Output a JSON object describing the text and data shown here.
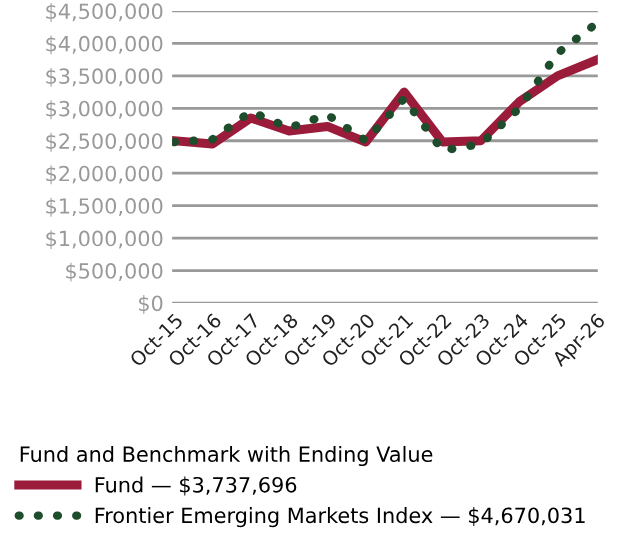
{
  "chart_data": {
    "type": "line",
    "categories": [
      "Oct-15",
      "Oct-16",
      "Oct-17",
      "Oct-18",
      "Oct-19",
      "Oct-20",
      "Oct-21",
      "Oct-22",
      "Oct-23",
      "Oct-24",
      "Oct-25",
      "Apr-26"
    ],
    "series": [
      {
        "name": "Fund — $3,737,696",
        "color": "#9b1b3a",
        "line_style": "solid",
        "values": [
          2500000,
          2450000,
          2850000,
          2650000,
          2720000,
          2480000,
          3250000,
          2480000,
          2500000,
          3100000,
          3500000,
          3740000
        ]
      },
      {
        "name": "Frontier Emerging Markets Index — $4,670,031",
        "color": "#1e4d2b",
        "line_style": "dotted",
        "values": [
          2480000,
          2520000,
          2950000,
          2700000,
          2900000,
          2500000,
          3150000,
          2350000,
          2450000,
          3000000,
          3850000,
          4300000
        ]
      }
    ],
    "ylim": [
      0,
      4500000
    ],
    "yticks": [
      {
        "value": 0,
        "label": "$0"
      },
      {
        "value": 500000,
        "label": "$500,000"
      },
      {
        "value": 1000000,
        "label": "$1,000,000"
      },
      {
        "value": 1500000,
        "label": "$1,500,000"
      },
      {
        "value": 2000000,
        "label": "$2,000,000"
      },
      {
        "value": 2500000,
        "label": "$2,500,000"
      },
      {
        "value": 3000000,
        "label": "$3,000,000"
      },
      {
        "value": 3500000,
        "label": "$3,500,000"
      },
      {
        "value": 4000000,
        "label": "$4,000,000"
      },
      {
        "value": 4500000,
        "label": "$4,500,000"
      }
    ],
    "grid": "y",
    "legend": "bottom",
    "legend_title": "Fund and Benchmark with Ending Value"
  }
}
